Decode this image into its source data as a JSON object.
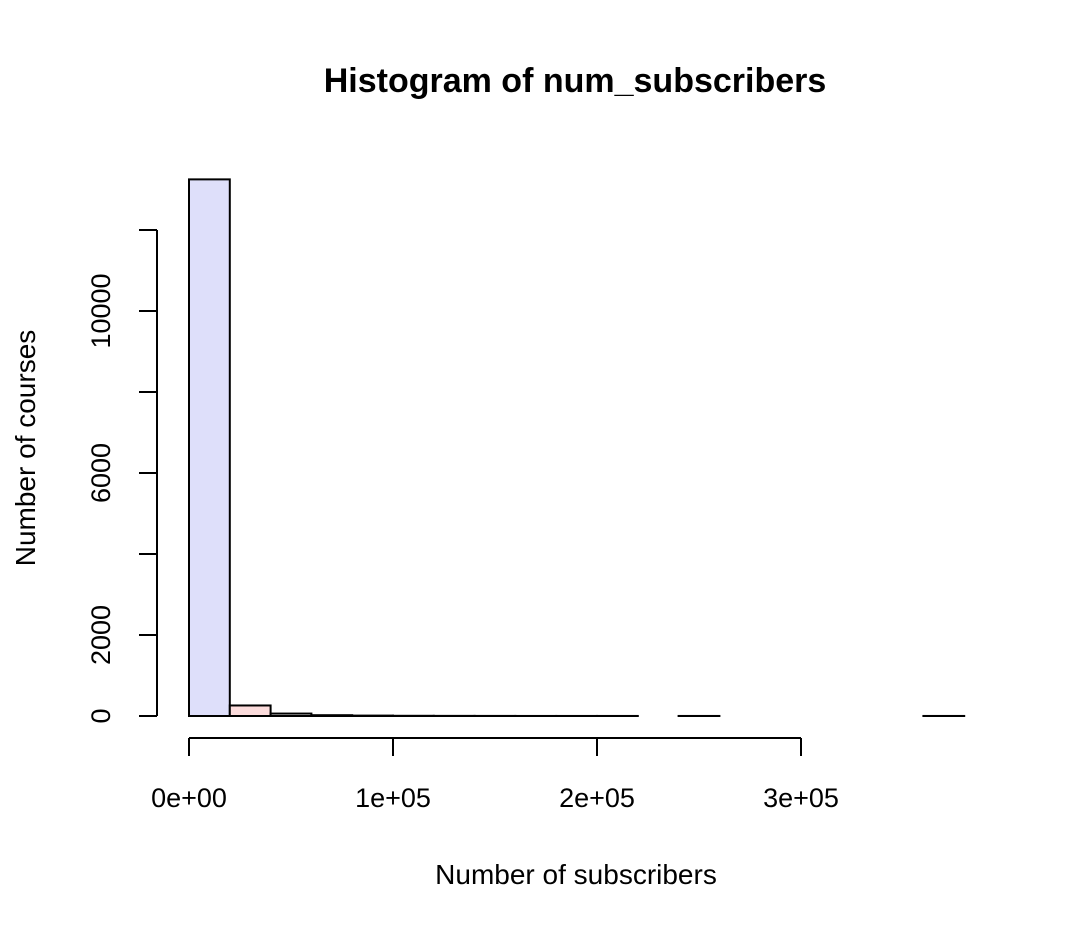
{
  "chart_data": {
    "type": "bar",
    "title": "Histogram of num_subscribers",
    "xlabel": "Number of subscribers",
    "ylabel": "Number of courses",
    "bin_width": 20000,
    "bins": [
      {
        "x0": 0,
        "x1": 20000,
        "count": 13250
      },
      {
        "x0": 20000,
        "x1": 40000,
        "count": 260
      },
      {
        "x0": 40000,
        "x1": 60000,
        "count": 60
      },
      {
        "x0": 60000,
        "x1": 80000,
        "count": 20
      },
      {
        "x0": 80000,
        "x1": 100000,
        "count": 10
      },
      {
        "x0": 100000,
        "x1": 120000,
        "count": 5
      },
      {
        "x0": 120000,
        "x1": 140000,
        "count": 3
      },
      {
        "x0": 140000,
        "x1": 160000,
        "count": 2
      },
      {
        "x0": 160000,
        "x1": 180000,
        "count": 1
      },
      {
        "x0": 180000,
        "x1": 200000,
        "count": 1
      },
      {
        "x0": 200000,
        "x1": 220000,
        "count": 1
      },
      {
        "x0": 220000,
        "x1": 240000,
        "count": 0
      },
      {
        "x0": 240000,
        "x1": 260000,
        "count": 1
      },
      {
        "x0": 260000,
        "x1": 280000,
        "count": 0
      },
      {
        "x0": 280000,
        "x1": 300000,
        "count": 0
      },
      {
        "x0": 300000,
        "x1": 320000,
        "count": 0
      },
      {
        "x0": 320000,
        "x1": 340000,
        "count": 0
      },
      {
        "x0": 340000,
        "x1": 360000,
        "count": 0
      },
      {
        "x0": 360000,
        "x1": 380000,
        "count": 1
      }
    ],
    "xlim": [
      0,
      380000
    ],
    "ylim": [
      0,
      13250
    ],
    "x_ticks": [
      {
        "value": 0,
        "label": "0e+00"
      },
      {
        "value": 100000,
        "label": "1e+05"
      },
      {
        "value": 200000,
        "label": "2e+05"
      },
      {
        "value": 300000,
        "label": "3e+05"
      }
    ],
    "y_ticks": [
      {
        "value": 0,
        "label": "0"
      },
      {
        "value": 2000,
        "label": "2000"
      },
      {
        "value": 4000,
        "label": ""
      },
      {
        "value": 6000,
        "label": "6000"
      },
      {
        "value": 8000,
        "label": ""
      },
      {
        "value": 10000,
        "label": "10000"
      },
      {
        "value": 12000,
        "label": ""
      }
    ],
    "grid": false,
    "colors": {
      "first_bin": "#dedffa",
      "second_bin": "#fcdcdc",
      "other_bins": "#ffffff",
      "stroke": "#000000"
    }
  }
}
